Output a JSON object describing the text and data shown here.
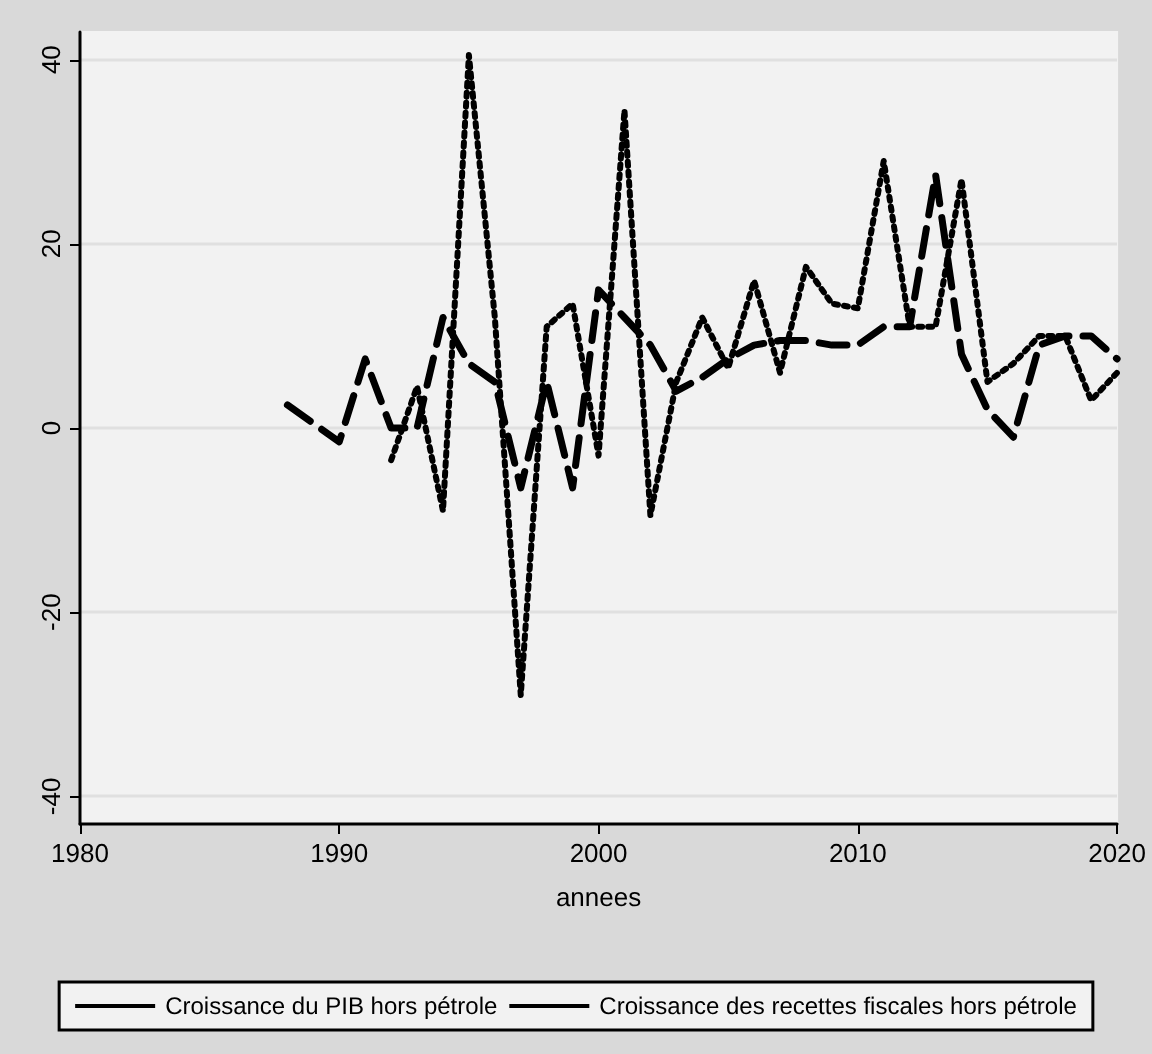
{
  "chart_data": {
    "type": "line",
    "xlabel": "annees",
    "xlim": [
      1980,
      2020
    ],
    "xticks": [
      1980,
      1990,
      2000,
      2010,
      2020
    ],
    "ylim": [
      -43,
      43
    ],
    "yticks": [
      -40,
      -20,
      0,
      20,
      40
    ],
    "grid": "y",
    "legend": "bottom",
    "marker": "none",
    "series": [
      {
        "name": "Croissance du PIB hors pétrole",
        "color": "#000000",
        "line_style": "dashed",
        "x": [
          1988,
          1989,
          1990,
          1991,
          1992,
          1993,
          1994,
          1995,
          1996,
          1997,
          1998,
          1999,
          2000,
          2001,
          2002,
          2003,
          2004,
          2005,
          2006,
          2007,
          2008,
          2009,
          2010,
          2011,
          2012,
          2013,
          2014,
          2015,
          2016,
          2017,
          2018,
          2019,
          2020
        ],
        "values": [
          2.5,
          0.5,
          -1.5,
          7.5,
          0,
          0,
          12,
          7,
          5,
          -6.5,
          5,
          -6.5,
          15,
          12,
          9,
          4,
          5.5,
          7.5,
          9,
          9.5,
          9.5,
          9,
          9,
          11,
          11,
          27.5,
          8,
          2,
          -1,
          9,
          10,
          10,
          7.5
        ]
      },
      {
        "name": "Croissance des recettes fiscales hors pétrole",
        "color": "#000000",
        "line_style": "dotted",
        "x": [
          1992,
          1993,
          1994,
          1995,
          1996,
          1997,
          1998,
          1999,
          2000,
          2001,
          2002,
          2003,
          2004,
          2005,
          2006,
          2007,
          2008,
          2009,
          2010,
          2011,
          2012,
          2013,
          2014,
          2015,
          2016,
          2017,
          2018,
          2019,
          2020
        ],
        "values": [
          -3.5,
          4.5,
          -9,
          40.5,
          12,
          -29,
          11,
          13.5,
          -3,
          34.5,
          -9.5,
          5,
          12,
          6.5,
          16,
          6,
          17.5,
          13.5,
          13,
          29,
          11,
          11,
          27,
          5,
          7,
          10,
          10,
          3,
          6
        ]
      }
    ]
  }
}
